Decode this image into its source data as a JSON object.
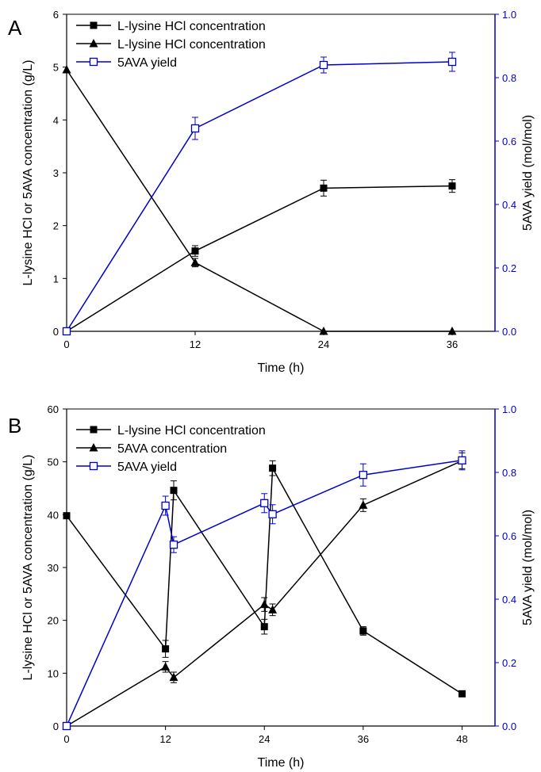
{
  "colors": {
    "black": "#000000",
    "blue": "#0000cc"
  },
  "chart_data": [
    {
      "panel": "A",
      "type": "line",
      "xlabel": "Time (h)",
      "ylabel": "L-lysine HCl or 5AVA concentration (g/L)",
      "ylabel_right": "5AVA yield (mol/mol)",
      "xlim": [
        0,
        40
      ],
      "ylim": [
        0,
        6
      ],
      "ylim_right": [
        0,
        1.0
      ],
      "xticks": [
        0,
        12,
        24,
        36
      ],
      "yticks": [
        0,
        1,
        2,
        3,
        4,
        5,
        6
      ],
      "yticks_right": [
        "0.0",
        "0.2",
        "0.4",
        "0.6",
        "0.8",
        "1.0"
      ],
      "legend_position": "top-left",
      "series": [
        {
          "name": "L-lysine HCl concentration",
          "axis": "left",
          "marker": "filled-square",
          "color": "#000000",
          "x": [
            0,
            12,
            24,
            36
          ],
          "y": [
            0,
            1.52,
            2.71,
            2.75
          ],
          "err": [
            0,
            0.1,
            0.15,
            0.12
          ]
        },
        {
          "name": "L-lysine HCl concentration",
          "axis": "left",
          "marker": "filled-triangle",
          "color": "#000000",
          "x": [
            0,
            12,
            24,
            36
          ],
          "y": [
            4.95,
            1.3,
            0,
            0
          ],
          "err": [
            0,
            0.08,
            0,
            0
          ]
        },
        {
          "name": "5AVA yield",
          "axis": "right",
          "marker": "open-square",
          "color": "#0000cc",
          "x": [
            0,
            12,
            24,
            36
          ],
          "y": [
            0,
            0.64,
            0.84,
            0.85
          ],
          "err": [
            0,
            0.035,
            0.025,
            0.03
          ]
        }
      ]
    },
    {
      "panel": "B",
      "type": "line",
      "xlabel": "Time (h)",
      "ylabel": "L-lysine HCl or 5AVA concentration (g/L)",
      "ylabel_right": "5AVA yield (mol/mol)",
      "xlim": [
        0,
        52
      ],
      "ylim": [
        0,
        60
      ],
      "ylim_right": [
        0,
        1.0
      ],
      "xticks": [
        0,
        12,
        24,
        36,
        48
      ],
      "yticks": [
        0,
        10,
        20,
        30,
        40,
        50,
        60
      ],
      "yticks_right": [
        "0.0",
        "0.2",
        "0.4",
        "0.6",
        "0.8",
        "1.0"
      ],
      "legend_position": "top-left",
      "series": [
        {
          "name": "L-lysine HCl concentration",
          "axis": "left",
          "marker": "filled-square",
          "color": "#000000",
          "x": [
            0,
            12,
            13,
            24,
            25,
            36,
            48
          ],
          "y": [
            39.8,
            14.6,
            44.6,
            18.8,
            48.8,
            18.0,
            6.1
          ],
          "err": [
            0,
            1.6,
            1.8,
            1.4,
            1.4,
            0.8,
            0
          ]
        },
        {
          "name": "5AVA concentration",
          "axis": "left",
          "marker": "filled-triangle",
          "color": "#000000",
          "x": [
            0,
            12,
            13,
            24,
            25,
            36,
            48
          ],
          "y": [
            0,
            11.2,
            9.2,
            23.0,
            22.0,
            41.8,
            50.2
          ],
          "err": [
            0,
            1.0,
            1.0,
            1.3,
            1.1,
            1.2,
            1.5
          ]
        },
        {
          "name": "5AVA yield",
          "axis": "right",
          "marker": "open-square",
          "color": "#0000cc",
          "x": [
            0,
            12,
            13,
            24,
            25,
            36,
            48
          ],
          "y": [
            0,
            0.695,
            0.572,
            0.703,
            0.668,
            0.792,
            0.838
          ],
          "err": [
            0,
            0.03,
            0.025,
            0.03,
            0.03,
            0.035,
            0.03
          ]
        }
      ]
    }
  ]
}
